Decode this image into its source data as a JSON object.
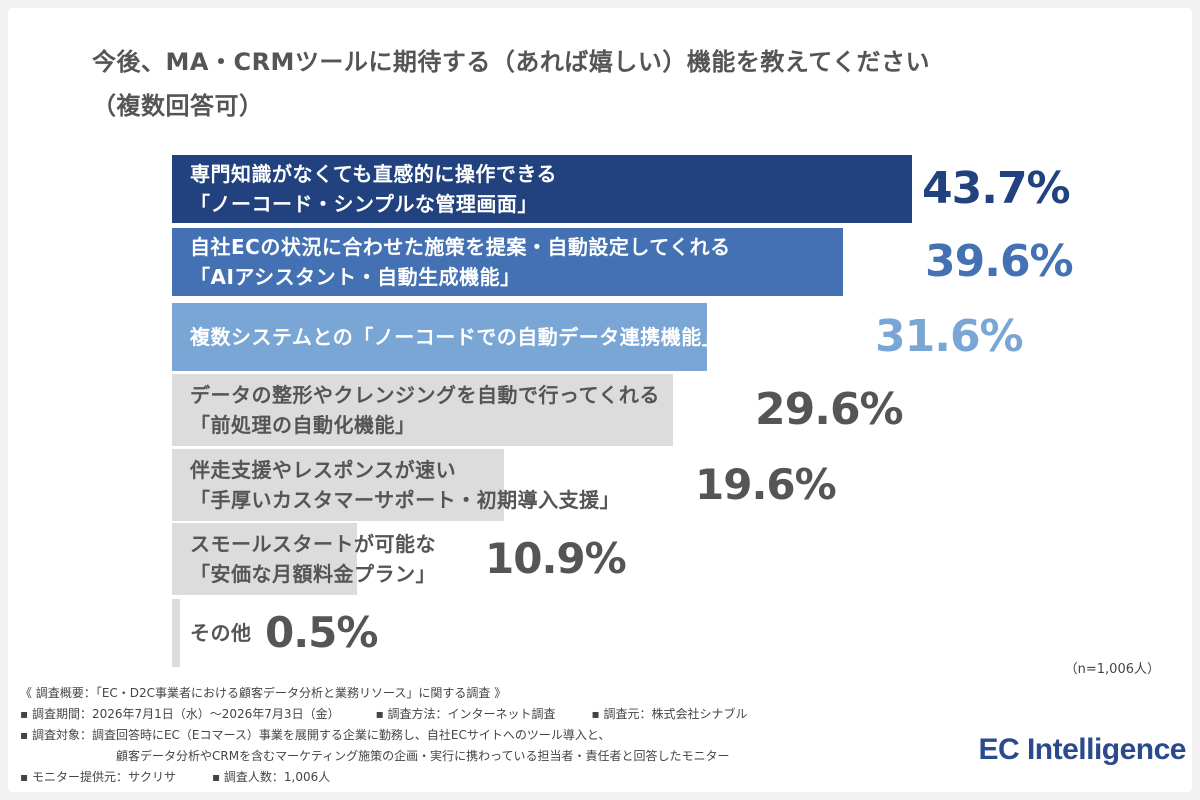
{
  "title_line1": "今後、MA・CRMツールに期待する（あれば嬉しい）機能を教えてください",
  "title_line2": "（複数回答可）",
  "n_note": "（n=1,006人）",
  "footer": {
    "line1": "《 調査概要：「EC・D2C事業者における顧客データ分析と業務リソース」に関する調査 》",
    "period": "▪ 調査期間：2026年7月1日（水）〜2026年7月3日（金）",
    "method": "▪ 調査方法：インターネット調査",
    "source": "▪ 調査元：株式会社シナブル",
    "target1": "▪ 調査対象：調査回答時にEC（Eコマース）事業を展開する企業に勤務し、自社ECサイトへのツール導入と、",
    "target2": "顧客データ分析やCRMを含むマーケティング施策の企画・実行に携わっている担当者・責任者と回答したモニター",
    "provider": "▪ モニター提供元：サクリサ",
    "count": "▪ 調査人数：1,006人"
  },
  "logo": "EC Intelligence",
  "colors": {
    "dark_blue": "#21427e",
    "mid_blue": "#4371b3",
    "light_blue": "#7aa6d6",
    "gray": "#dcdcdc",
    "gray_text": "#555555",
    "value_gray": "#555555"
  },
  "chart_data": {
    "type": "bar",
    "orientation": "horizontal",
    "unit": "%",
    "categories": [
      [
        "専門知識がなくても直感的に操作できる",
        "「ノーコード・シンプルな管理画面」"
      ],
      [
        "自社ECの状況に合わせた施策を提案・自動設定してくれる",
        "「AIアシスタント・自動生成機能」"
      ],
      [
        "複数システムとの「ノーコードでの自動データ連携機能」"
      ],
      [
        "データの整形やクレンジングを自動で行ってくれる",
        "「前処理の自動化機能」"
      ],
      [
        "伴走支援やレスポンスが速い",
        "「手厚いカスタマーサポート・初期導入支援」"
      ],
      [
        "スモールスタートが可能な",
        "「安価な月額料金プラン」"
      ],
      [
        "その他"
      ]
    ],
    "values": [
      43.7,
      39.6,
      31.6,
      29.6,
      19.6,
      10.9,
      0.5
    ],
    "value_labels": [
      "43.7%",
      "39.6%",
      "31.6%",
      "29.6%",
      "19.6%",
      "10.9%",
      "0.5%"
    ],
    "xlim": [
      0,
      43.7
    ]
  }
}
